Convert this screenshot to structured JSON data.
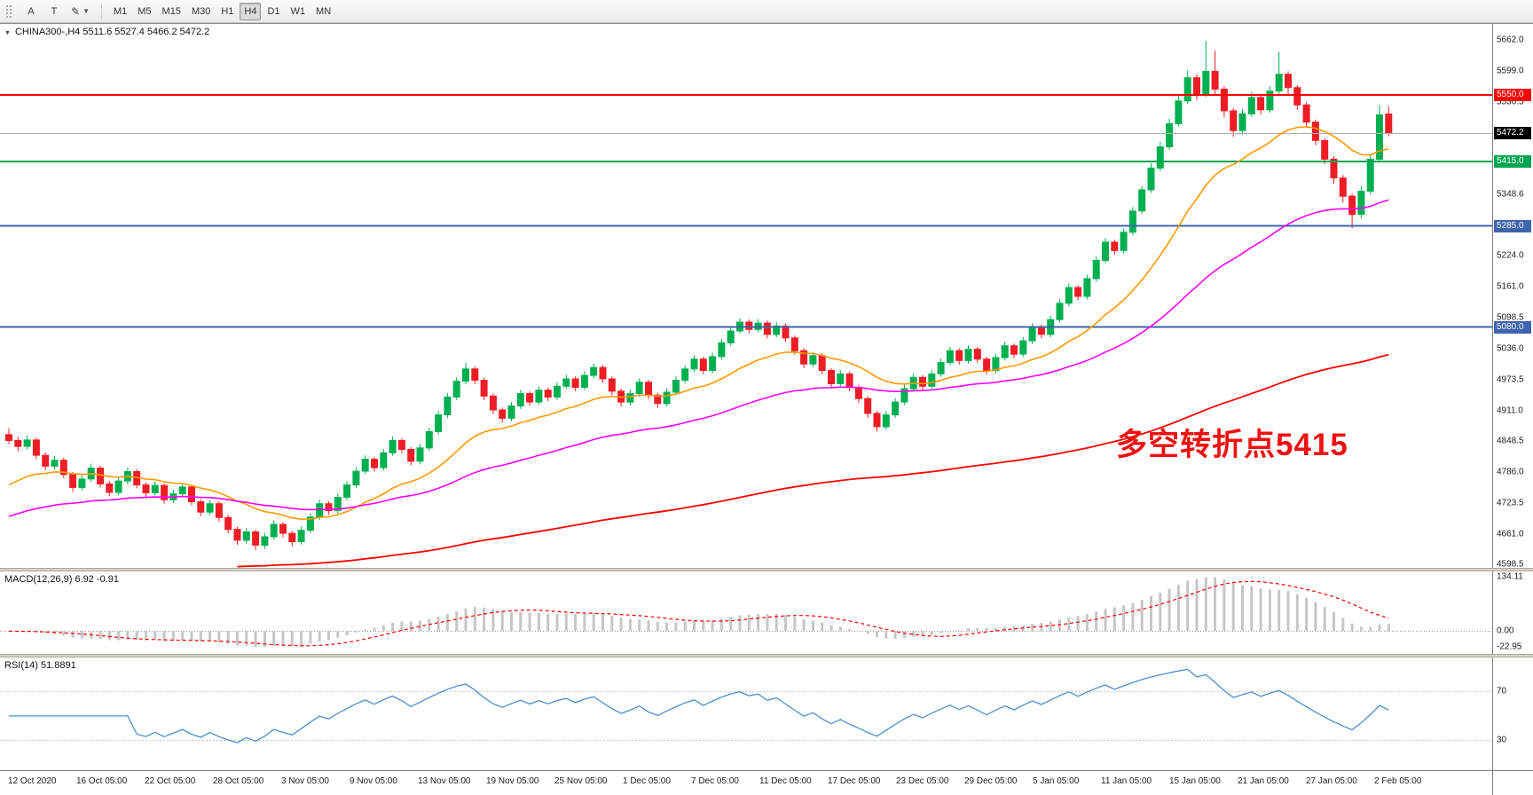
{
  "toolbar": {
    "tools": [
      {
        "label": "A"
      },
      {
        "label": "T"
      },
      {
        "label": "✎"
      }
    ],
    "timeframes": [
      {
        "label": "M1",
        "active": false
      },
      {
        "label": "M5",
        "active": false
      },
      {
        "label": "M15",
        "active": false
      },
      {
        "label": "M30",
        "active": false
      },
      {
        "label": "H1",
        "active": false
      },
      {
        "label": "H4",
        "active": true
      },
      {
        "label": "D1",
        "active": false
      },
      {
        "label": "W1",
        "active": false
      },
      {
        "label": "MN",
        "active": false
      }
    ]
  },
  "chart_data": {
    "type": "candlestick",
    "symbol": "CHINA300-",
    "timeframe": "H4",
    "header": "CHINA300-,H4  5511.6 5527.4 5466.2 5472.2",
    "ohlc": {
      "open": 5511.6,
      "high": 5527.4,
      "low": 5466.2,
      "close": 5472.2
    },
    "price_panel": {
      "ylim": [
        4592,
        5694
      ],
      "up_color": "#00b050",
      "down_color": "#ee1c25",
      "y_ticks": [
        5662.0,
        5599.0,
        5536.5,
        5474.0,
        5411.5,
        5348.6,
        5286.0,
        5224.0,
        5161.0,
        5098.5,
        5036.0,
        4973.5,
        4911.0,
        4848.5,
        4786.0,
        4723.5,
        4661.0,
        4598.5
      ],
      "hlines": [
        {
          "value": 5550.0,
          "label": "5550.0",
          "color": "#ff0000",
          "width": 2
        },
        {
          "value": 5415.0,
          "label": "5415.0",
          "color": "#00a651",
          "width": 2
        },
        {
          "value": 5285.0,
          "label": "5285.0",
          "color": "#3e64ad",
          "width": 2
        },
        {
          "value": 5080.0,
          "label": "5080.0",
          "color": "#3e64ad",
          "width": 2
        }
      ],
      "current_price": {
        "value": 5472.2,
        "label": "5472.2",
        "badge_color": "#000000",
        "line_color": "#b0b0b0"
      },
      "annotation": {
        "text": "多空转折点5415",
        "color": "#ee1111"
      }
    },
    "moving_averages": [
      {
        "name": "ma-fast",
        "period": 18,
        "seed": 4750,
        "color": "#ff9900",
        "width": 1.6,
        "start_index": 0
      },
      {
        "name": "ma-mid",
        "period": 50,
        "seed": 4690,
        "color": "#ff00ff",
        "width": 1.6,
        "start_index": 0
      },
      {
        "name": "ma-slow",
        "period": 180,
        "seed": 4540,
        "color": "#ff0000",
        "width": 1.8,
        "start_index": 25
      }
    ],
    "candles": [
      [
        4862,
        4875,
        4843,
        4850
      ],
      [
        4850,
        4858,
        4828,
        4838
      ],
      [
        4838,
        4860,
        4832,
        4851
      ],
      [
        4851,
        4856,
        4812,
        4820
      ],
      [
        4820,
        4826,
        4790,
        4798
      ],
      [
        4798,
        4819,
        4791,
        4810
      ],
      [
        4810,
        4815,
        4774,
        4781
      ],
      [
        4781,
        4786,
        4746,
        4755
      ],
      [
        4755,
        4780,
        4749,
        4772
      ],
      [
        4772,
        4803,
        4766,
        4794
      ],
      [
        4794,
        4799,
        4755,
        4762
      ],
      [
        4762,
        4768,
        4737,
        4745
      ],
      [
        4745,
        4776,
        4739,
        4768
      ],
      [
        4768,
        4795,
        4761,
        4787
      ],
      [
        4787,
        4792,
        4753,
        4760
      ],
      [
        4760,
        4765,
        4735,
        4744
      ],
      [
        4744,
        4767,
        4738,
        4759
      ],
      [
        4759,
        4763,
        4722,
        4730
      ],
      [
        4730,
        4750,
        4723,
        4742
      ],
      [
        4742,
        4764,
        4736,
        4756
      ],
      [
        4756,
        4760,
        4719,
        4726
      ],
      [
        4726,
        4731,
        4697,
        4705
      ],
      [
        4705,
        4730,
        4699,
        4722
      ],
      [
        4722,
        4727,
        4686,
        4694
      ],
      [
        4694,
        4699,
        4662,
        4670
      ],
      [
        4670,
        4675,
        4639,
        4648
      ],
      [
        4648,
        4673,
        4641,
        4665
      ],
      [
        4665,
        4669,
        4628,
        4638
      ],
      [
        4638,
        4663,
        4630,
        4655
      ],
      [
        4655,
        4688,
        4649,
        4680
      ],
      [
        4680,
        4685,
        4654,
        4662
      ],
      [
        4662,
        4667,
        4636,
        4645
      ],
      [
        4645,
        4676,
        4639,
        4668
      ],
      [
        4668,
        4703,
        4662,
        4695
      ],
      [
        4695,
        4730,
        4689,
        4722
      ],
      [
        4722,
        4727,
        4700,
        4708
      ],
      [
        4708,
        4743,
        4702,
        4735
      ],
      [
        4735,
        4768,
        4729,
        4760
      ],
      [
        4760,
        4796,
        4754,
        4788
      ],
      [
        4788,
        4820,
        4782,
        4812
      ],
      [
        4812,
        4817,
        4787,
        4795
      ],
      [
        4795,
        4833,
        4789,
        4825
      ],
      [
        4825,
        4858,
        4819,
        4850
      ],
      [
        4850,
        4855,
        4824,
        4832
      ],
      [
        4832,
        4837,
        4800,
        4808
      ],
      [
        4808,
        4843,
        4802,
        4835
      ],
      [
        4835,
        4876,
        4829,
        4868
      ],
      [
        4868,
        4910,
        4862,
        4902
      ],
      [
        4902,
        4946,
        4896,
        4938
      ],
      [
        4938,
        4978,
        4932,
        4970
      ],
      [
        4970,
        5008,
        4964,
        4995
      ],
      [
        4995,
        5000,
        4964,
        4972
      ],
      [
        4972,
        4977,
        4932,
        4940
      ],
      [
        4940,
        4945,
        4903,
        4912
      ],
      [
        4912,
        4917,
        4886,
        4895
      ],
      [
        4895,
        4928,
        4889,
        4920
      ],
      [
        4920,
        4953,
        4914,
        4945
      ],
      [
        4945,
        4950,
        4920,
        4928
      ],
      [
        4928,
        4960,
        4922,
        4952
      ],
      [
        4952,
        4957,
        4930,
        4938
      ],
      [
        4938,
        4968,
        4932,
        4960
      ],
      [
        4960,
        4983,
        4954,
        4975
      ],
      [
        4975,
        4980,
        4950,
        4958
      ],
      [
        4958,
        4990,
        4952,
        4982
      ],
      [
        4982,
        5006,
        4976,
        4998
      ],
      [
        4998,
        5003,
        4967,
        4975
      ],
      [
        4975,
        4980,
        4942,
        4950
      ],
      [
        4950,
        4955,
        4919,
        4928
      ],
      [
        4928,
        4953,
        4921,
        4945
      ],
      [
        4945,
        4976,
        4939,
        4968
      ],
      [
        4968,
        4973,
        4934,
        4942
      ],
      [
        4942,
        4947,
        4916,
        4925
      ],
      [
        4925,
        4956,
        4919,
        4948
      ],
      [
        4948,
        4980,
        4942,
        4972
      ],
      [
        4972,
        5003,
        4966,
        4995
      ],
      [
        4995,
        5023,
        4989,
        5015
      ],
      [
        5015,
        5020,
        4984,
        4992
      ],
      [
        4992,
        5028,
        4986,
        5020
      ],
      [
        5020,
        5056,
        5014,
        5048
      ],
      [
        5048,
        5080,
        5042,
        5072
      ],
      [
        5072,
        5098,
        5066,
        5090
      ],
      [
        5090,
        5095,
        5067,
        5075
      ],
      [
        5075,
        5096,
        5069,
        5088
      ],
      [
        5088,
        5093,
        5057,
        5065
      ],
      [
        5065,
        5090,
        5059,
        5082
      ],
      [
        5082,
        5087,
        5050,
        5058
      ],
      [
        5058,
        5063,
        5024,
        5032
      ],
      [
        5032,
        5037,
        4997,
        5005
      ],
      [
        5005,
        5030,
        4999,
        5022
      ],
      [
        5022,
        5027,
        4984,
        4992
      ],
      [
        4992,
        4997,
        4957,
        4965
      ],
      [
        4965,
        4993,
        4959,
        4985
      ],
      [
        4985,
        4990,
        4950,
        4958
      ],
      [
        4958,
        4963,
        4926,
        4935
      ],
      [
        4935,
        4940,
        4896,
        4905
      ],
      [
        4905,
        4910,
        4868,
        4878
      ],
      [
        4878,
        4910,
        4872,
        4902
      ],
      [
        4902,
        4936,
        4896,
        4928
      ],
      [
        4928,
        4963,
        4922,
        4955
      ],
      [
        4955,
        4986,
        4949,
        4978
      ],
      [
        4978,
        4983,
        4952,
        4960
      ],
      [
        4960,
        4993,
        4954,
        4985
      ],
      [
        4985,
        5016,
        4979,
        5008
      ],
      [
        5008,
        5040,
        5002,
        5032
      ],
      [
        5032,
        5037,
        5004,
        5012
      ],
      [
        5012,
        5043,
        5006,
        5035
      ],
      [
        5035,
        5040,
        5007,
        5015
      ],
      [
        5015,
        5020,
        4984,
        4992
      ],
      [
        4992,
        5026,
        4986,
        5018
      ],
      [
        5018,
        5050,
        5012,
        5042
      ],
      [
        5042,
        5047,
        5017,
        5025
      ],
      [
        5025,
        5060,
        5019,
        5052
      ],
      [
        5052,
        5088,
        5046,
        5080
      ],
      [
        5080,
        5085,
        5057,
        5065
      ],
      [
        5065,
        5103,
        5059,
        5095
      ],
      [
        5095,
        5136,
        5089,
        5128
      ],
      [
        5128,
        5168,
        5122,
        5160
      ],
      [
        5160,
        5165,
        5134,
        5142
      ],
      [
        5142,
        5186,
        5136,
        5178
      ],
      [
        5178,
        5223,
        5172,
        5215
      ],
      [
        5215,
        5260,
        5209,
        5252
      ],
      [
        5252,
        5257,
        5227,
        5235
      ],
      [
        5235,
        5280,
        5229,
        5272
      ],
      [
        5272,
        5323,
        5266,
        5315
      ],
      [
        5315,
        5366,
        5309,
        5358
      ],
      [
        5358,
        5412,
        5352,
        5402
      ],
      [
        5402,
        5455,
        5396,
        5445
      ],
      [
        5445,
        5502,
        5439,
        5492
      ],
      [
        5492,
        5550,
        5486,
        5538
      ],
      [
        5538,
        5600,
        5532,
        5585
      ],
      [
        5585,
        5592,
        5540,
        5552
      ],
      [
        5552,
        5660,
        5546,
        5598
      ],
      [
        5598,
        5640,
        5550,
        5562
      ],
      [
        5562,
        5568,
        5505,
        5518
      ],
      [
        5518,
        5524,
        5465,
        5478
      ],
      [
        5478,
        5522,
        5470,
        5512
      ],
      [
        5512,
        5556,
        5506,
        5545
      ],
      [
        5545,
        5550,
        5510,
        5520
      ],
      [
        5520,
        5568,
        5514,
        5558
      ],
      [
        5558,
        5638,
        5552,
        5592
      ],
      [
        5592,
        5598,
        5552,
        5565
      ],
      [
        5565,
        5570,
        5520,
        5530
      ],
      [
        5530,
        5536,
        5486,
        5495
      ],
      [
        5495,
        5500,
        5448,
        5458
      ],
      [
        5458,
        5463,
        5410,
        5420
      ],
      [
        5420,
        5426,
        5370,
        5382
      ],
      [
        5382,
        5388,
        5332,
        5345
      ],
      [
        5345,
        5350,
        5280,
        5308
      ],
      [
        5308,
        5365,
        5300,
        5355
      ],
      [
        5355,
        5432,
        5348,
        5420
      ],
      [
        5420,
        5530,
        5414,
        5510
      ],
      [
        5511.6,
        5527.4,
        5466.2,
        5472.2
      ]
    ],
    "x_labels": [
      "12 Oct 2020",
      "16 Oct 05:00",
      "22 Oct 05:00",
      "28 Oct 05:00",
      "3 Nov 05:00",
      "9 Nov 05:00",
      "13 Nov 05:00",
      "19 Nov 05:00",
      "25 Nov 05:00",
      "1 Dec 05:00",
      "7 Dec 05:00",
      "11 Dec 05:00",
      "17 Dec 05:00",
      "23 Dec 05:00",
      "29 Dec 05:00",
      "5 Jan 05:00",
      "11 Jan 05:00",
      "15 Jan 05:00",
      "21 Jan 05:00",
      "27 Jan 05:00",
      "2 Feb 05:00"
    ],
    "macd_panel": {
      "label": "MACD(12,26,9) 6.92 -0.91",
      "fast": 12,
      "slow": 26,
      "signal": 9,
      "y_labels": [
        "134.11",
        "0.00",
        "-22.95"
      ],
      "hist_color": "#c6c6c6",
      "signal_color": "#ff0000"
    },
    "rsi_panel": {
      "label": "RSI(14) 51.8891",
      "period": 14,
      "levels": [
        70,
        30
      ],
      "y_labels": [
        "70",
        "30"
      ],
      "ylim": [
        10,
        95
      ],
      "line_color": "#4a90d2",
      "level_color": "#c9c9c9"
    }
  }
}
